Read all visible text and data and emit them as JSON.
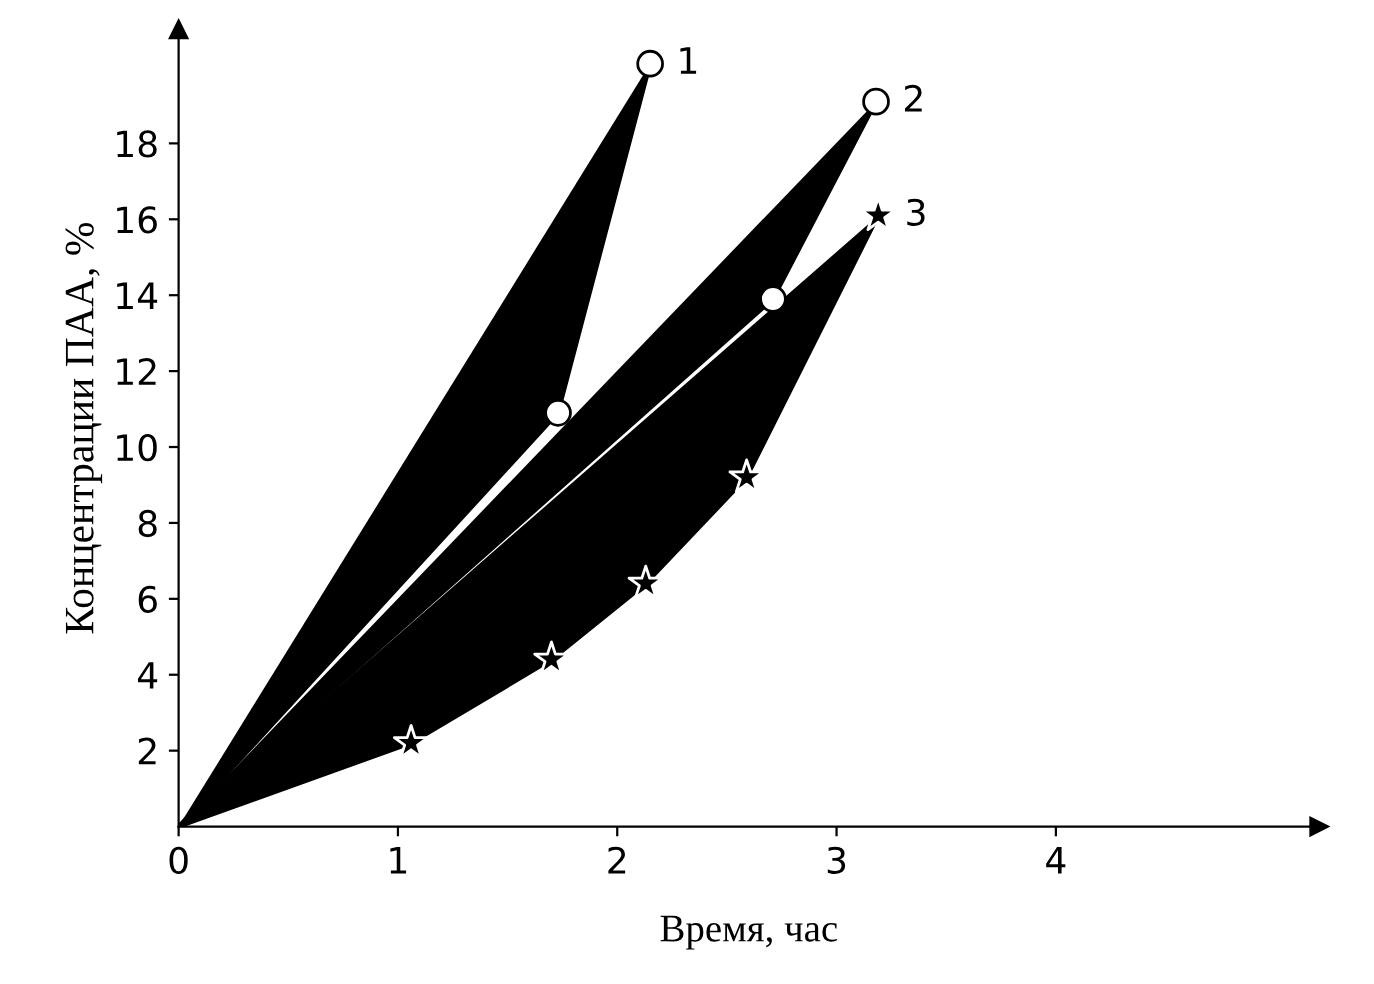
{
  "chart_data": {
    "type": "area",
    "xlabel": "Время, час",
    "ylabel": "Концентрации ПАА, %",
    "xlim": [
      0,
      5.2
    ],
    "ylim": [
      0,
      21
    ],
    "xticks": [
      0,
      1,
      2,
      3,
      4
    ],
    "yticks": [
      2,
      4,
      6,
      8,
      10,
      12,
      14,
      16,
      18
    ],
    "grid": false,
    "series": [
      {
        "name": "1",
        "color": "#000000",
        "marker": "circle",
        "x": [
          0,
          1.73,
          2.15
        ],
        "values": [
          0,
          10.9,
          20.1
        ]
      },
      {
        "name": "2",
        "color": "#000000",
        "marker": "circle",
        "x": [
          0,
          2.71,
          3.18
        ],
        "values": [
          0,
          13.9,
          19.1
        ]
      },
      {
        "name": "3",
        "color": "#000000",
        "marker": "star",
        "x": [
          0,
          1.06,
          1.7,
          2.13,
          2.59,
          3.19
        ],
        "values": [
          0,
          2.2,
          4.4,
          6.4,
          9.2,
          16.1
        ]
      }
    ]
  }
}
